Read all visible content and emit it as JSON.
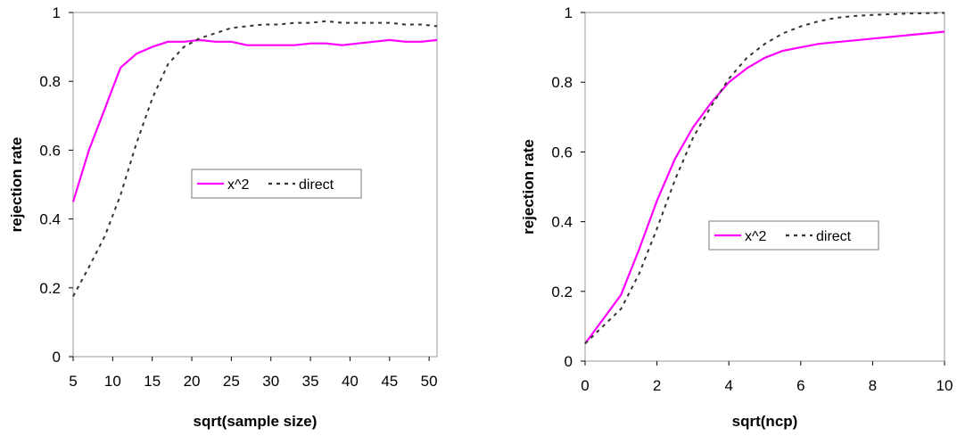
{
  "chart_data": [
    {
      "type": "line",
      "xlabel": "sqrt(sample size)",
      "ylabel": "rejection rate",
      "xlim": [
        5,
        51
      ],
      "ylim": [
        0,
        1
      ],
      "xticks": [
        "5",
        "10",
        "15",
        "20",
        "25",
        "30",
        "35",
        "40",
        "45",
        "50"
      ],
      "xtick_values": [
        5,
        10,
        15,
        20,
        25,
        30,
        35,
        40,
        45,
        50
      ],
      "yticks": [
        "0",
        "0.2",
        "0.4",
        "0.6",
        "0.8",
        "1"
      ],
      "ytick_values": [
        0,
        0.2,
        0.4,
        0.6,
        0.8,
        1
      ],
      "grid": false,
      "legend_position": "center-right",
      "legend": [
        "x^2",
        "direct"
      ],
      "series": [
        {
          "name": "x^2",
          "color": "#ff00ff",
          "dash": "solid",
          "x": [
            5,
            7,
            9,
            10,
            11,
            13,
            15,
            17,
            19,
            21,
            23,
            25,
            27,
            29,
            31,
            33,
            35,
            37,
            39,
            41,
            43,
            45,
            47,
            49,
            51
          ],
          "y": [
            0.45,
            0.6,
            0.72,
            0.78,
            0.84,
            0.88,
            0.9,
            0.915,
            0.915,
            0.92,
            0.915,
            0.915,
            0.905,
            0.905,
            0.905,
            0.905,
            0.91,
            0.91,
            0.905,
            0.91,
            0.915,
            0.92,
            0.915,
            0.915,
            0.92
          ]
        },
        {
          "name": "direct",
          "color": "#333333",
          "dash": "dashed",
          "x": [
            5,
            7,
            9,
            11,
            13,
            15,
            17,
            19,
            21,
            23,
            25,
            27,
            29,
            31,
            33,
            35,
            37,
            39,
            41,
            43,
            45,
            47,
            49,
            51
          ],
          "y": [
            0.175,
            0.26,
            0.35,
            0.47,
            0.62,
            0.75,
            0.85,
            0.9,
            0.925,
            0.94,
            0.955,
            0.96,
            0.965,
            0.965,
            0.97,
            0.97,
            0.975,
            0.97,
            0.97,
            0.97,
            0.97,
            0.965,
            0.965,
            0.96
          ]
        }
      ]
    },
    {
      "type": "line",
      "xlabel": "sqrt(ncp)",
      "ylabel": "rejection rate",
      "xlim": [
        0,
        10
      ],
      "ylim": [
        0,
        1
      ],
      "xticks": [
        "0",
        "2",
        "4",
        "6",
        "8",
        "10"
      ],
      "xtick_values": [
        0,
        2,
        4,
        6,
        8,
        10
      ],
      "yticks": [
        "0",
        "0.2",
        "0.4",
        "0.6",
        "0.8",
        "1"
      ],
      "ytick_values": [
        0,
        0.2,
        0.4,
        0.6,
        0.8,
        1
      ],
      "grid": false,
      "legend_position": "center-right",
      "legend": [
        "x^2",
        "direct"
      ],
      "series": [
        {
          "name": "x^2",
          "color": "#ff00ff",
          "dash": "solid",
          "x": [
            0,
            0.5,
            1,
            1.5,
            2,
            2.5,
            3,
            3.5,
            4,
            4.5,
            5,
            5.5,
            6,
            6.5,
            7,
            7.5,
            8,
            8.5,
            9,
            9.5,
            10
          ],
          "y": [
            0.05,
            0.12,
            0.19,
            0.32,
            0.46,
            0.58,
            0.67,
            0.74,
            0.8,
            0.84,
            0.87,
            0.89,
            0.9,
            0.91,
            0.915,
            0.92,
            0.925,
            0.93,
            0.935,
            0.94,
            0.945
          ]
        },
        {
          "name": "direct",
          "color": "#333333",
          "dash": "dashed",
          "x": [
            0,
            0.5,
            1,
            1.5,
            2,
            2.5,
            3,
            3.5,
            4,
            4.5,
            5,
            5.5,
            6,
            6.5,
            7,
            7.5,
            8,
            8.5,
            9,
            9.5,
            10
          ],
          "y": [
            0.05,
            0.1,
            0.15,
            0.25,
            0.38,
            0.52,
            0.64,
            0.73,
            0.81,
            0.87,
            0.91,
            0.94,
            0.96,
            0.975,
            0.985,
            0.99,
            0.993,
            0.995,
            0.997,
            0.998,
            0.999
          ]
        }
      ]
    }
  ]
}
